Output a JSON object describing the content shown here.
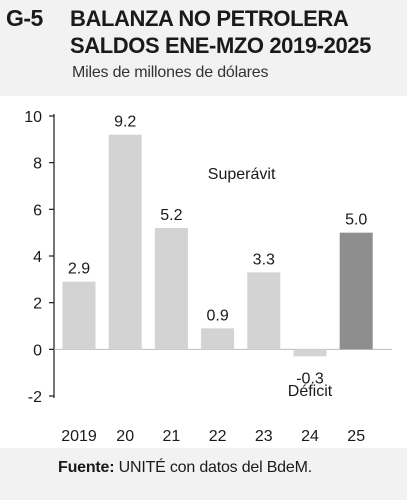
{
  "figure": {
    "number": "G-5",
    "title_line1": "BALANZA NO PETROLERA",
    "title_line2": "SALDOS ENE-MZO 2019-2025",
    "subtitle": "Miles de millones de dólares",
    "source_label": "Fuente:",
    "source_text": "UNITÉ con datos del BdeM."
  },
  "chart_data": {
    "type": "bar",
    "title": "BALANZA NO PETROLERA SALDOS ENE-MZO 2019-2025",
    "ylabel": "Miles de millones de dólares",
    "xlabel": "",
    "categories": [
      "2019",
      "20",
      "21",
      "22",
      "23",
      "24",
      "25"
    ],
    "values": [
      2.9,
      9.2,
      5.2,
      0.9,
      3.3,
      -0.3,
      5.0
    ],
    "value_labels": [
      "2.9",
      "9.2",
      "5.2",
      "0.9",
      "3.3",
      "-0.3",
      "5.0"
    ],
    "ylim": [
      -2,
      10
    ],
    "yticks": [
      -2,
      0,
      2,
      4,
      6,
      8,
      10
    ],
    "ytick_labels": [
      "-2",
      "0",
      "2",
      "4",
      "6",
      "8",
      "10"
    ],
    "grid": false,
    "annotations": [
      {
        "text": "Superávit",
        "x": "22",
        "y": 7.3
      },
      {
        "text": "Déficit",
        "x": "24",
        "y": -2.0
      }
    ],
    "colors": {
      "bar": "#d3d3d3",
      "bar_highlight": "#8e8e8e",
      "axis": "#1a1a1a"
    },
    "highlight_index": 6
  }
}
